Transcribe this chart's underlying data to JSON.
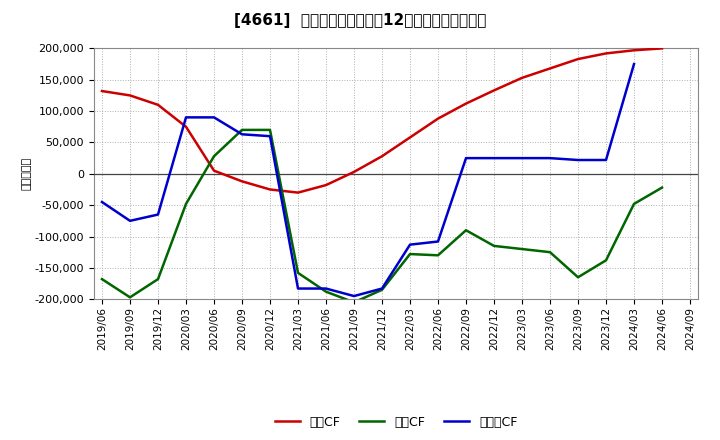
{
  "title": "[4661]  キャッシュフローの12か月移動合計の推移",
  "ylabel": "（百万円）",
  "background_color": "#ffffff",
  "plot_bg_color": "#ffffff",
  "grid_color": "#b0b0b0",
  "dates": [
    "2019/06",
    "2019/09",
    "2019/12",
    "2020/03",
    "2020/06",
    "2020/09",
    "2020/12",
    "2021/03",
    "2021/06",
    "2021/09",
    "2021/12",
    "2022/03",
    "2022/06",
    "2022/09",
    "2022/12",
    "2023/03",
    "2023/06",
    "2023/09",
    "2023/12",
    "2024/03",
    "2024/06",
    "2024/09"
  ],
  "operating_cf": [
    132000,
    125000,
    110000,
    75000,
    5000,
    -12000,
    -25000,
    -30000,
    -18000,
    3000,
    28000,
    58000,
    88000,
    112000,
    133000,
    153000,
    168000,
    183000,
    192000,
    197000,
    200000,
    null
  ],
  "investing_cf": [
    -168000,
    -197000,
    -168000,
    -48000,
    28000,
    70000,
    70000,
    -158000,
    -188000,
    -205000,
    -185000,
    -128000,
    -130000,
    -90000,
    -115000,
    -120000,
    -125000,
    -165000,
    -138000,
    -48000,
    -22000,
    null
  ],
  "free_cf": [
    -45000,
    -75000,
    -65000,
    90000,
    90000,
    63000,
    60000,
    -183000,
    -183000,
    -195000,
    -183000,
    -113000,
    -108000,
    25000,
    25000,
    25000,
    25000,
    22000,
    22000,
    175000,
    null,
    null
  ],
  "operating_color": "#cc0000",
  "investing_color": "#006600",
  "free_color": "#0000cc",
  "ylim": [
    -200000,
    200000
  ],
  "yticks": [
    -200000,
    -150000,
    -100000,
    -50000,
    0,
    50000,
    100000,
    150000,
    200000
  ],
  "legend_labels": [
    "営業CF",
    "投資CF",
    "フリーCF"
  ],
  "line_width": 1.8
}
